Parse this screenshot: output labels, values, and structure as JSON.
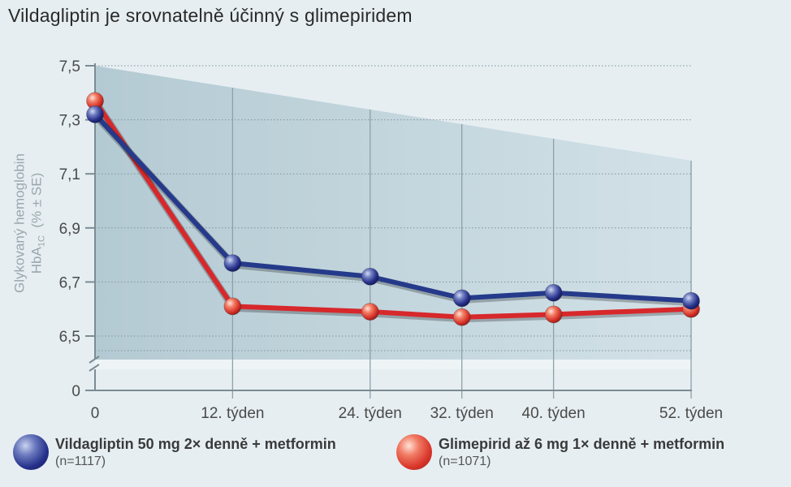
{
  "title": "Vildagliptin je srovnatelně účinný s glimepiridem",
  "y_label_line1": "Glykovaný hemoglobin",
  "y_label_line2_main": "HbA",
  "y_label_line2_sub": "1C",
  "y_label_line2_rest": "(% ± SE)",
  "colors": {
    "vildagliptin": "#253a8a",
    "glimepirid": "#d7282b",
    "plot_area": "#c2d6de",
    "grid": "#8fa3ab"
  },
  "legend": [
    {
      "name": "Vildagliptin 50 mg 2× denně + metformin",
      "n": "(n=1117)",
      "ball": "blue"
    },
    {
      "name": "Glimepirid až 6 mg 1× denně + metformin",
      "n": "(n=1071)",
      "ball": "red"
    }
  ],
  "chart_data": {
    "type": "line",
    "title": "Vildagliptin je srovnatelně účinný s glimepiridem",
    "xlabel": "",
    "ylabel": "Glykovaný hemoglobin HbA1C (% ± SE)",
    "x": [
      0,
      12,
      24,
      32,
      40,
      52
    ],
    "x_tick_labels": [
      "0",
      "12. týden",
      "24. týden",
      "32. týden",
      "40. týden",
      "52. týden"
    ],
    "y_ticks": [
      6.5,
      6.7,
      6.9,
      7.1,
      7.3,
      7.5
    ],
    "y_tick_labels": [
      "6,5",
      "6,7",
      "6,9",
      "7,1",
      "7,3",
      "7,5"
    ],
    "y_zero_label": "0",
    "ylim": [
      6.5,
      7.5
    ],
    "axis_break": true,
    "grid": true,
    "series": [
      {
        "name": "Vildagliptin 50 mg 2× denně + metformin",
        "values": [
          7.32,
          6.77,
          6.72,
          6.64,
          6.66,
          6.63
        ]
      },
      {
        "name": "Glimepirid až 6 mg 1× denně + metformin",
        "values": [
          7.37,
          6.61,
          6.59,
          6.57,
          6.58,
          6.6
        ]
      }
    ]
  }
}
